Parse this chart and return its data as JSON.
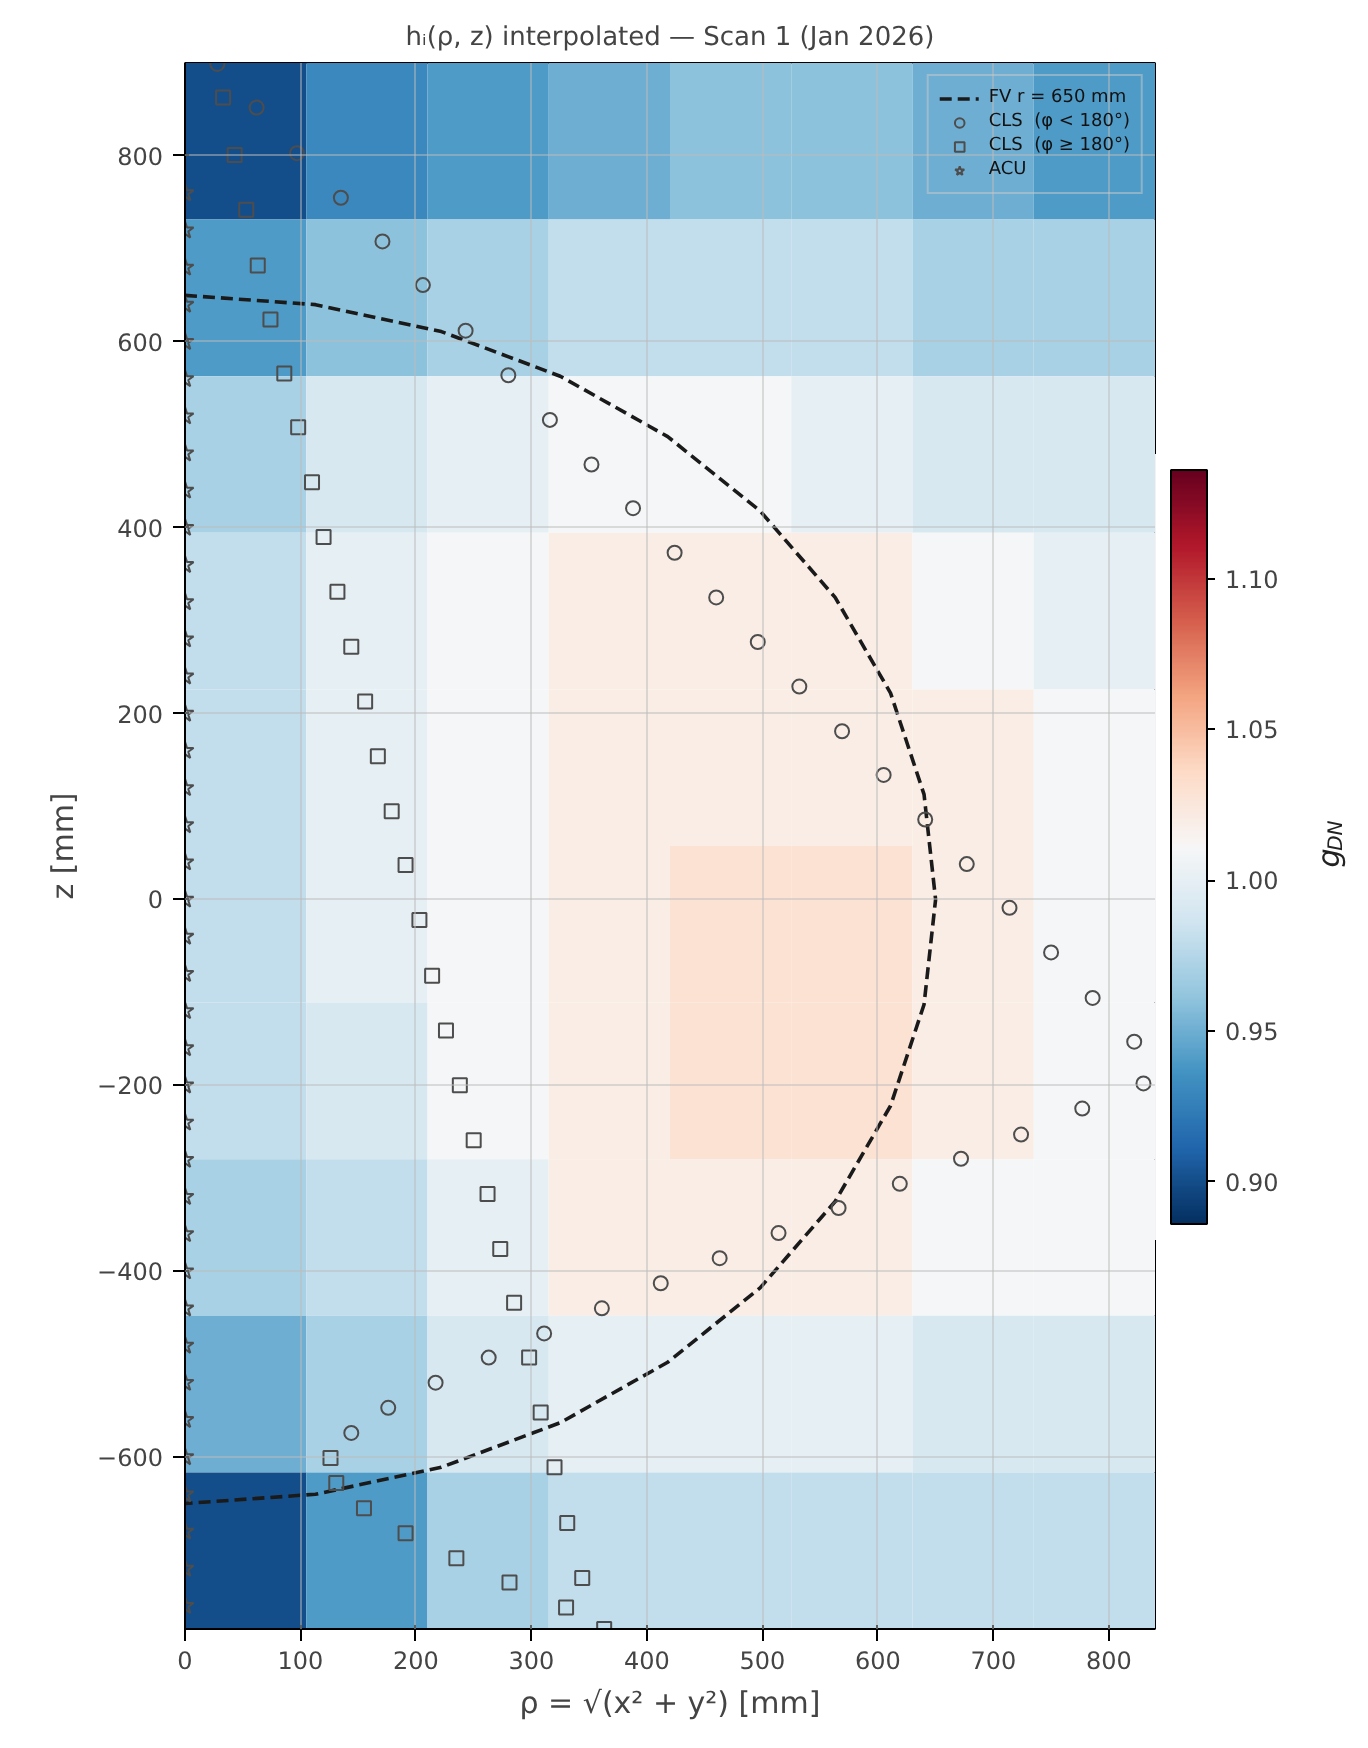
{
  "chart_data": {
    "type": "heatmap",
    "title": "hᵢ(ρ, z) interpolated — Scan 1 (Jan 2026)",
    "xlabel": "ρ = √(x² + y²) [mm]",
    "ylabel": "z [mm]",
    "clabel": "g$_{DN}$",
    "xlim": [
      0,
      840
    ],
    "ylim": [
      -785,
      900
    ],
    "xticks": [
      0,
      100,
      200,
      300,
      400,
      500,
      600,
      700,
      800
    ],
    "yticks": [
      {
        "value": -600,
        "label": "−600"
      },
      {
        "value": -400,
        "label": "−400"
      },
      {
        "value": -200,
        "label": "−200"
      },
      0,
      200,
      400,
      600,
      800
    ],
    "clim": [
      0.886,
      1.136
    ],
    "cticks": [
      {
        "value": 0.9,
        "label": "0.90"
      },
      0.95,
      {
        "value": 1.0,
        "label": "1.00"
      },
      1.05,
      {
        "value": 1.1,
        "label": "1.10"
      }
    ],
    "cells": [
      [
        0.9,
        0.93,
        0.94,
        0.95,
        0.96,
        0.96,
        0.95,
        0.94
      ],
      [
        0.94,
        0.96,
        0.97,
        0.98,
        0.98,
        0.98,
        0.97,
        0.97
      ],
      [
        0.97,
        0.99,
        1.0,
        1.01,
        1.01,
        1.0,
        0.99,
        0.99
      ],
      [
        0.98,
        1.0,
        1.01,
        1.02,
        1.02,
        1.02,
        1.01,
        1.0
      ],
      [
        0.98,
        1.0,
        1.01,
        1.02,
        1.02,
        1.02,
        1.02,
        1.01
      ],
      [
        0.98,
        1.0,
        1.01,
        1.02,
        1.03,
        1.03,
        1.02,
        1.01
      ],
      [
        0.98,
        0.99,
        1.01,
        1.02,
        1.03,
        1.03,
        1.02,
        1.01
      ],
      [
        0.97,
        0.98,
        1.0,
        1.02,
        1.02,
        1.02,
        1.01,
        1.01
      ],
      [
        0.95,
        0.97,
        0.99,
        1.0,
        1.0,
        1.0,
        0.99,
        0.99
      ],
      [
        0.9,
        0.94,
        0.97,
        0.98,
        0.98,
        0.98,
        0.98,
        0.98
      ]
    ],
    "grid": true,
    "legend": "top right",
    "series": [
      {
        "name": "FV r = 650 mm",
        "type": "line",
        "line_style": "dashed",
        "color": "#1a1a1a",
        "x": [
          0,
          113,
          222,
          325,
          418,
          498,
          563,
          611,
          640,
          650,
          640,
          611,
          563,
          498,
          418,
          325,
          222,
          113,
          0
        ],
        "values": [
          650,
          640,
          611,
          563,
          498,
          418,
          325,
          222,
          113,
          0,
          -113,
          -222,
          -325,
          -418,
          -498,
          -563,
          -611,
          -640,
          -650
        ]
      },
      {
        "name": "CLS  (φ < 180°)",
        "type": "scatter",
        "marker": "circle",
        "color": "#4d4d4d",
        "x": [
          28,
          62,
          97,
          135,
          171,
          206,
          243,
          280,
          316,
          352,
          388,
          424,
          460,
          496,
          532,
          569,
          605,
          641,
          677,
          714,
          750,
          786,
          822,
          830,
          777,
          724,
          672,
          619,
          566,
          514,
          463,
          412,
          361,
          311,
          263,
          217,
          176,
          144
        ],
        "values": [
          899,
          852,
          803,
          755,
          708,
          661,
          612,
          564,
          516,
          468,
          421,
          373,
          325,
          277,
          229,
          181,
          134,
          86,
          38,
          -9,
          -57,
          -106,
          -153,
          -198,
          -225,
          -253,
          -279,
          -306,
          -332,
          -359,
          -386,
          -413,
          -440,
          -467,
          -493,
          -520,
          -547,
          -574
        ]
      },
      {
        "name": "CLS  (φ ≥ 180°)",
        "type": "scatter",
        "marker": "square",
        "color": "#4d4d4d",
        "x": [
          33,
          43,
          53,
          63,
          74,
          86,
          98,
          110,
          120,
          132,
          144,
          156,
          167,
          179,
          191,
          203,
          214,
          226,
          238,
          250,
          262,
          273,
          285,
          298,
          308,
          320,
          331,
          344,
          363,
          330,
          281,
          235,
          191,
          155,
          131,
          126
        ],
        "values": [
          863,
          801,
          742,
          682,
          624,
          566,
          508,
          449,
          390,
          331,
          272,
          213,
          154,
          95,
          37,
          -22,
          -82,
          -141,
          -200,
          -259,
          -317,
          -376,
          -434,
          -493,
          -552,
          -611,
          -671,
          -730,
          -785,
          -762,
          -735,
          -709,
          -682,
          -655,
          -628,
          -601
        ]
      },
      {
        "name": "ACU",
        "type": "scatter",
        "marker": "star",
        "color": "#4d4d4d",
        "x": [
          0,
          0,
          0,
          0,
          0,
          0,
          0,
          0,
          0,
          0,
          0,
          0,
          0,
          0,
          0,
          0,
          0,
          0,
          0,
          0,
          0,
          0,
          0,
          0,
          0,
          0,
          0,
          0,
          0,
          0,
          0,
          0,
          0,
          0,
          0,
          0,
          0,
          0,
          0
        ],
        "values": [
          760,
          720,
          680,
          640,
          600,
          560,
          520,
          480,
          440,
          400,
          360,
          320,
          280,
          240,
          200,
          160,
          120,
          80,
          40,
          0,
          -40,
          -80,
          -120,
          -160,
          -200,
          -240,
          -280,
          -320,
          -360,
          -400,
          -440,
          -480,
          -520,
          -560,
          -600,
          -640,
          -680,
          -720,
          -760
        ]
      }
    ]
  }
}
